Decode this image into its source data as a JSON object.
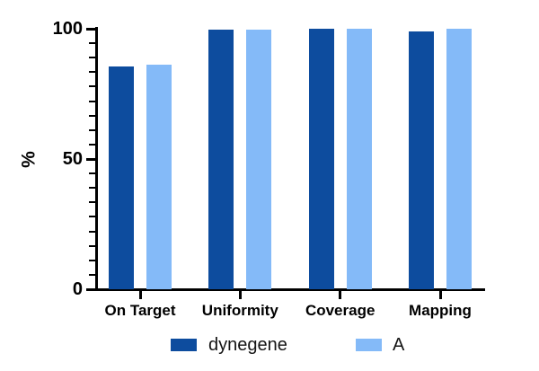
{
  "chart_data": {
    "type": "bar",
    "title": "",
    "ylabel": "%",
    "xlabel": "",
    "ylim": [
      0,
      100
    ],
    "yticks": [
      0,
      50,
      100
    ],
    "ytick_labels": [
      "0",
      "50",
      "100"
    ],
    "minor_ticks_between_majors": 8,
    "grid": false,
    "legend_position": "bottom",
    "axis_color": "#000000",
    "text_color": "#000000",
    "categories": [
      "On Target",
      "Uniformity",
      "Coverage",
      "Mapping"
    ],
    "series": [
      {
        "name": "dynegene",
        "color": "#0d4c9e",
        "values": [
          85.5,
          99.8,
          100.0,
          99.0
        ]
      },
      {
        "name": "A",
        "color": "#84baf8",
        "values": [
          86.3,
          99.5,
          99.9,
          99.9
        ]
      }
    ]
  }
}
